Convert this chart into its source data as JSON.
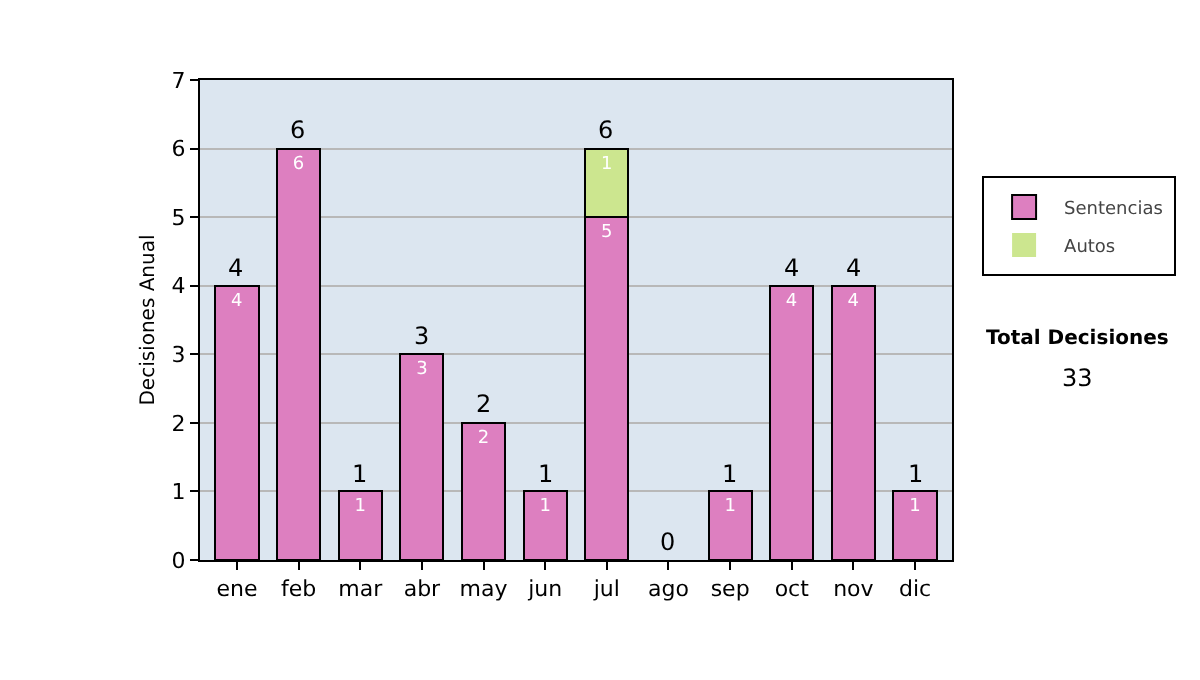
{
  "chart_data": {
    "type": "bar",
    "stacked": true,
    "ylabel": "Decisiones Anual",
    "categories": [
      "ene",
      "feb",
      "mar",
      "abr",
      "may",
      "jun",
      "jul",
      "ago",
      "sep",
      "oct",
      "nov",
      "dic"
    ],
    "series": [
      {
        "name": "Sentencias",
        "color": "#dd7fc0",
        "values": [
          4,
          6,
          1,
          3,
          2,
          1,
          5,
          0,
          1,
          4,
          4,
          1
        ],
        "value_labels": [
          "4",
          "6",
          "1",
          "3",
          "2",
          "1",
          "5",
          null,
          "1",
          "4",
          "4",
          "1"
        ]
      },
      {
        "name": "Autos",
        "color": "#cce68f",
        "values": [
          0,
          0,
          0,
          0,
          0,
          0,
          1,
          0,
          0,
          0,
          0,
          0
        ],
        "value_labels": [
          null,
          null,
          null,
          null,
          null,
          null,
          "1",
          null,
          null,
          null,
          null,
          null
        ]
      }
    ],
    "totals": [
      "4",
      "6",
      "1",
      "3",
      "2",
      "1",
      "6",
      "0",
      "1",
      "4",
      "4",
      "1"
    ],
    "ylim": [
      0,
      7
    ],
    "yticks": [
      0,
      1,
      2,
      3,
      4,
      5,
      6,
      7
    ],
    "grid": "y",
    "legend": "right",
    "annotations": [
      "Total Decisiones",
      "33"
    ]
  }
}
